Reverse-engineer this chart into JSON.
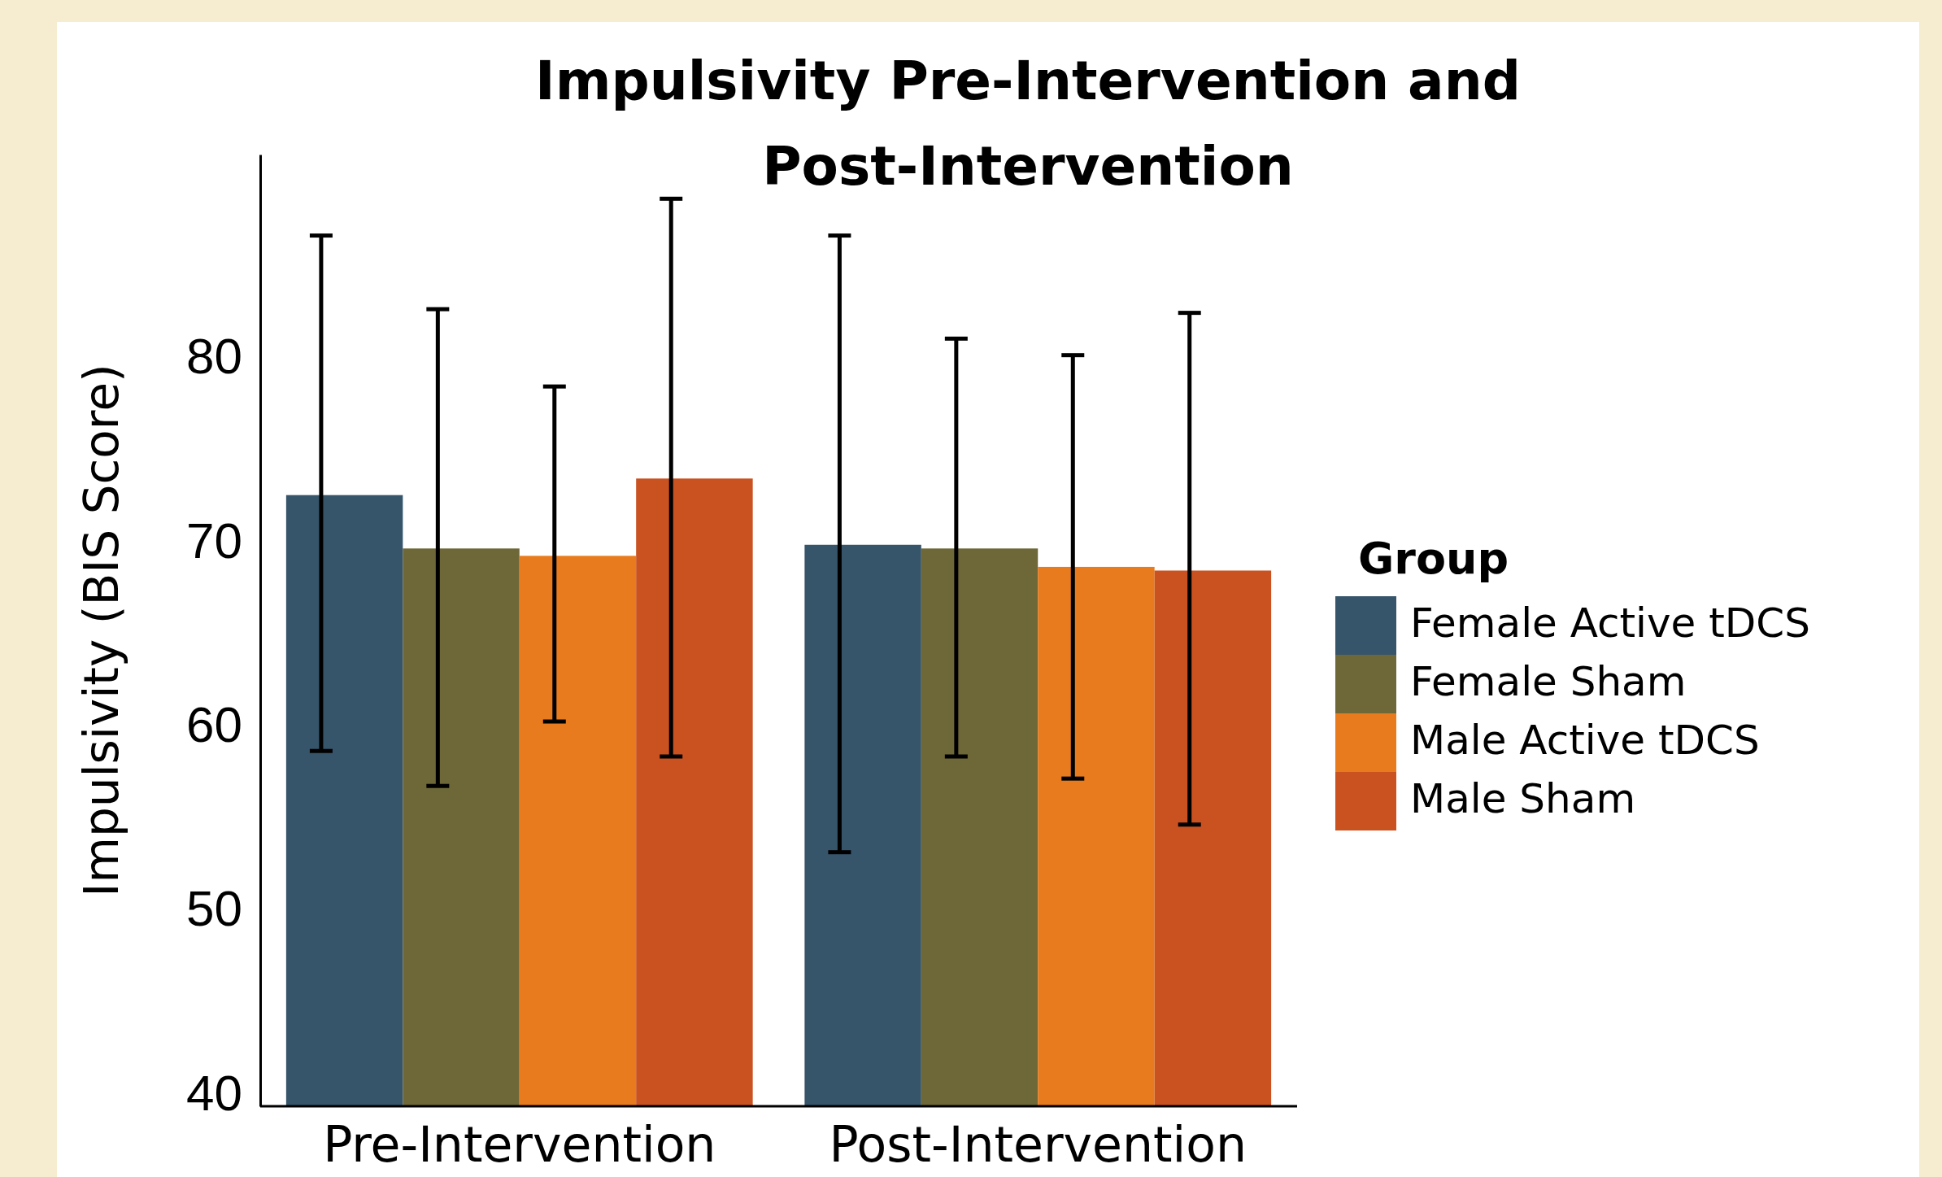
{
  "chart_data": {
    "type": "bar",
    "title": "Impulsivity Pre-Intervention and Post-Intervention",
    "ylabel": "Impulsivity (BIS Score)",
    "legend_title": "Group",
    "categories": [
      "Pre-Intervention",
      "Post-Intervention"
    ],
    "series": [
      {
        "name": "Female Active tDCS",
        "color": "#36546a",
        "values": [
          72.5,
          69.8
        ],
        "errors": [
          [
            58.6,
            86.6
          ],
          [
            53.1,
            86.6
          ]
        ]
      },
      {
        "name": "Female Sham",
        "color": "#6e6738",
        "values": [
          69.6,
          69.6
        ],
        "errors": [
          [
            56.7,
            82.6
          ],
          [
            58.3,
            81.0
          ]
        ]
      },
      {
        "name": "Male Active tDCS",
        "color": "#e97b1f",
        "values": [
          69.2,
          68.6
        ],
        "errors": [
          [
            60.2,
            78.4
          ],
          [
            57.1,
            80.1
          ]
        ]
      },
      {
        "name": "Male Sham",
        "color": "#ca5220",
        "values": [
          73.4,
          68.4
        ],
        "errors": [
          [
            58.3,
            88.6
          ],
          [
            54.6,
            82.4
          ]
        ]
      }
    ],
    "ylim": [
      39.3,
      91
    ],
    "yticks": [
      40,
      50,
      60,
      70,
      80
    ],
    "grid": false,
    "legend": "right"
  }
}
